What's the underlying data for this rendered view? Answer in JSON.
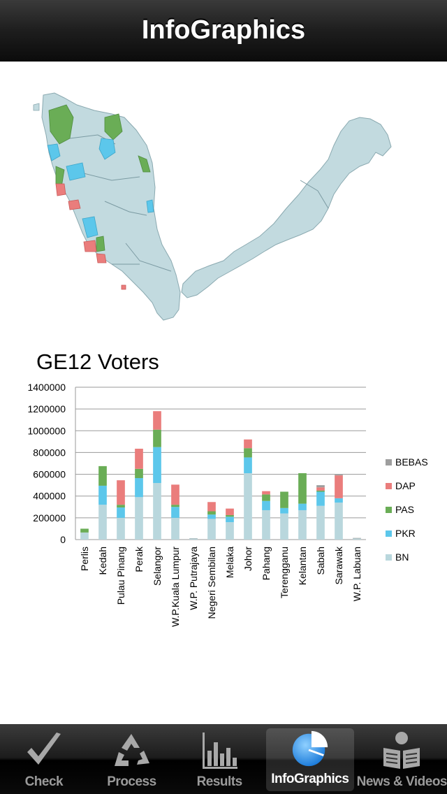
{
  "nav": {
    "title": "InfoGraphics"
  },
  "colors": {
    "BN": "#b9d7dd",
    "PKR": "#5cc7eb",
    "PAS": "#6aad56",
    "DAP": "#ea7d7c",
    "BEBAS": "#9e9e9e",
    "land": "#c2dadf"
  },
  "chart_data": {
    "type": "bar",
    "stacked": true,
    "title": "GE12 Voters",
    "xlabel": "",
    "ylabel": "",
    "ylim": [
      0,
      1400000
    ],
    "yticks": [
      "0",
      "200000",
      "400000",
      "600000",
      "800000",
      "1000000",
      "1200000",
      "1400000"
    ],
    "grid": true,
    "legend_position": "right",
    "categories": [
      "Perlis",
      "Kedah",
      "Pulau Pinang",
      "Perak",
      "Selangor",
      "W.P.Kuala Lumpur",
      "W.P. Putrajaya",
      "Negeri Sembilan",
      "Melaka",
      "Johor",
      "Pahang",
      "Terengganu",
      "Kelantan",
      "Sabah",
      "Sarawak",
      "W.P. Labuan"
    ],
    "series": [
      {
        "name": "BN",
        "values": [
          65000,
          320000,
          200000,
          390000,
          520000,
          200000,
          10000,
          190000,
          160000,
          610000,
          270000,
          240000,
          270000,
          310000,
          340000,
          10000
        ]
      },
      {
        "name": "PKR",
        "values": [
          0,
          175000,
          95000,
          175000,
          330000,
          100000,
          0,
          40000,
          50000,
          145000,
          85000,
          50000,
          60000,
          130000,
          40000,
          0
        ]
      },
      {
        "name": "PAS",
        "values": [
          35000,
          180000,
          25000,
          85000,
          160000,
          20000,
          0,
          30000,
          15000,
          85000,
          60000,
          150000,
          280000,
          10000,
          0,
          0
        ]
      },
      {
        "name": "DAP",
        "values": [
          0,
          0,
          225000,
          185000,
          170000,
          185000,
          0,
          85000,
          60000,
          80000,
          30000,
          0,
          0,
          30000,
          210000,
          0
        ]
      },
      {
        "name": "BEBAS",
        "values": [
          0,
          0,
          0,
          0,
          0,
          0,
          3000,
          0,
          0,
          0,
          0,
          0,
          0,
          20000,
          10000,
          5000
        ]
      }
    ],
    "legend_order": [
      "BEBAS",
      "DAP",
      "PAS",
      "PKR",
      "BN"
    ]
  },
  "tabs": [
    {
      "label": "Check",
      "icon": "checkmark-icon",
      "active": false
    },
    {
      "label": "Process",
      "icon": "recycle-icon",
      "active": false
    },
    {
      "label": "Results",
      "icon": "bar-chart-icon",
      "active": false
    },
    {
      "label": "InfoGraphics",
      "icon": "pie-chart-icon",
      "active": true
    },
    {
      "label": "News & Videos",
      "icon": "newspaper-reader-icon",
      "active": false
    }
  ]
}
